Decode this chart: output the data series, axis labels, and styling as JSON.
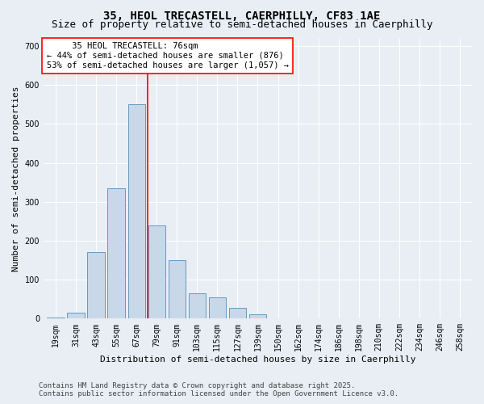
{
  "title_line1": "35, HEOL TRECASTELL, CAERPHILLY, CF83 1AE",
  "title_line2": "Size of property relative to semi-detached houses in Caerphilly",
  "xlabel": "Distribution of semi-detached houses by size in Caerphilly",
  "ylabel": "Number of semi-detached properties",
  "bin_labels": [
    "19sqm",
    "31sqm",
    "43sqm",
    "55sqm",
    "67sqm",
    "79sqm",
    "91sqm",
    "103sqm",
    "115sqm",
    "127sqm",
    "139sqm",
    "150sqm",
    "162sqm",
    "174sqm",
    "186sqm",
    "198sqm",
    "210sqm",
    "222sqm",
    "234sqm",
    "246sqm",
    "258sqm"
  ],
  "bar_values": [
    2,
    15,
    170,
    335,
    550,
    240,
    150,
    65,
    55,
    28,
    12,
    0,
    0,
    0,
    0,
    0,
    0,
    0,
    0,
    0,
    0
  ],
  "bar_color": "#c8d8e8",
  "bar_edge_color": "#6699bb",
  "vline_x": 4.55,
  "vline_color": "red",
  "annotation_text": "     35 HEOL TRECASTELL: 76sqm\n← 44% of semi-detached houses are smaller (876)\n53% of semi-detached houses are larger (1,057) →",
  "annotation_box_color": "white",
  "annotation_box_edge": "red",
  "ylim": [
    0,
    720
  ],
  "yticks": [
    0,
    100,
    200,
    300,
    400,
    500,
    600,
    700
  ],
  "background_color": "#e8eef4",
  "plot_bg_color": "#e8eef4",
  "footer_text": "Contains HM Land Registry data © Crown copyright and database right 2025.\nContains public sector information licensed under the Open Government Licence v3.0.",
  "title_fontsize": 10,
  "subtitle_fontsize": 9,
  "axis_label_fontsize": 8,
  "tick_fontsize": 7,
  "annot_fontsize": 7.5,
  "footer_fontsize": 6.5
}
